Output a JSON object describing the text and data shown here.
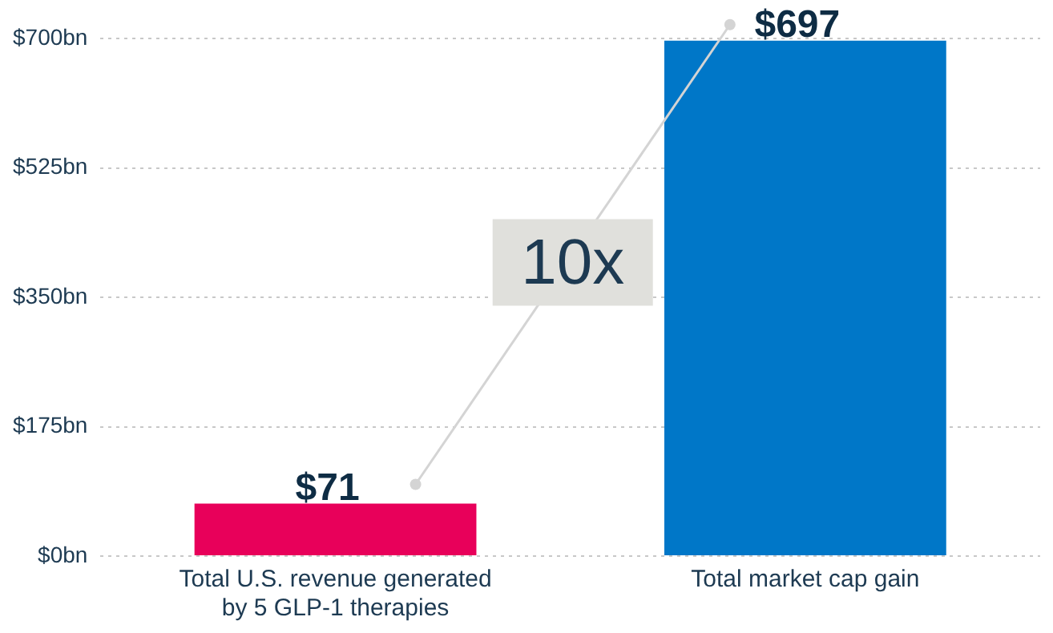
{
  "chart_data": {
    "type": "bar",
    "categories": [
      "Total U.S. revenue generated by 5 GLP-1 therapies",
      "Total market cap gain"
    ],
    "values": [
      71,
      697
    ],
    "colors": [
      "#e8005a",
      "#0077c8"
    ],
    "value_labels": [
      "$71",
      "$697"
    ],
    "ylim": [
      0,
      700
    ],
    "yticks": [
      {
        "value": 0,
        "label": "$0bn"
      },
      {
        "value": 175,
        "label": "$175bn"
      },
      {
        "value": 350,
        "label": "$350bn"
      },
      {
        "value": 525,
        "label": "$525bn"
      },
      {
        "value": 700,
        "label": "$700bn"
      }
    ],
    "grid": "y",
    "annotations": [
      "10x"
    ],
    "legend": false
  }
}
